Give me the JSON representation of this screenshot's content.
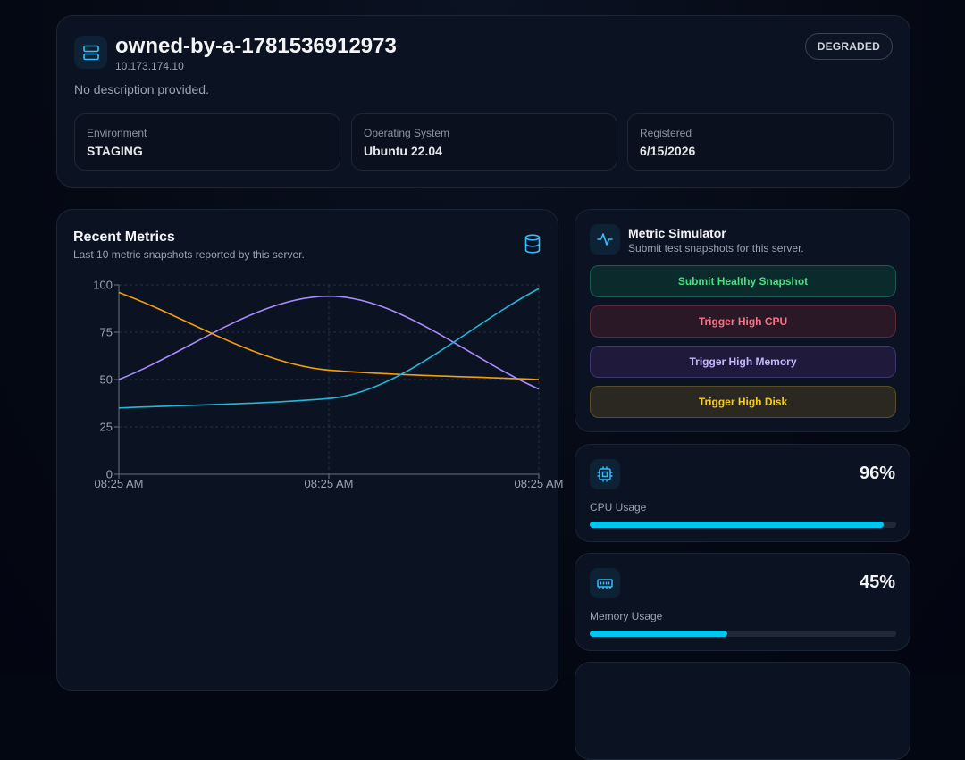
{
  "server": {
    "name": "owned-by-a-1781536912973",
    "ip": "10.173.174.10",
    "description": "No description provided.",
    "status": "DEGRADED",
    "icon": "server-icon"
  },
  "info": [
    {
      "label": "Environment",
      "value": "STAGING"
    },
    {
      "label": "Operating System",
      "value": "Ubuntu 22.04"
    },
    {
      "label": "Registered",
      "value": "6/15/2026"
    }
  ],
  "metrics": {
    "title": "Recent Metrics",
    "subtitle": "Last 10 metric snapshots reported by this server.",
    "icon": "database-icon"
  },
  "chart_data": {
    "type": "line",
    "x": [
      "08:25 AM",
      "08:25 AM",
      "08:25 AM"
    ],
    "ylim": [
      0,
      100
    ],
    "yticks": [
      0,
      25,
      50,
      75,
      100
    ],
    "grid": true,
    "series": [
      {
        "color": "#a78bfa",
        "values": [
          50,
          94,
          45
        ]
      },
      {
        "color": "#f59e0b",
        "values": [
          96,
          55,
          50
        ]
      },
      {
        "color": "#22b8d8",
        "values": [
          35,
          40,
          98
        ]
      }
    ]
  },
  "simulator": {
    "title": "Metric Simulator",
    "subtitle": "Submit test snapshots for this server.",
    "icon": "activity-icon",
    "buttons": {
      "healthy": "Submit Healthy Snapshot",
      "cpu": "Trigger High CPU",
      "memory": "Trigger High Memory",
      "disk": "Trigger High Disk"
    }
  },
  "usage": {
    "cpu": {
      "label": "CPU Usage",
      "value": "96%",
      "percent": 96,
      "icon": "cpu-icon"
    },
    "memory": {
      "label": "Memory Usage",
      "value": "45%",
      "percent": 45,
      "icon": "memory-icon"
    }
  },
  "colors": {
    "accent": "#00c6f0",
    "background": "#030712",
    "card": "#0b1221"
  }
}
